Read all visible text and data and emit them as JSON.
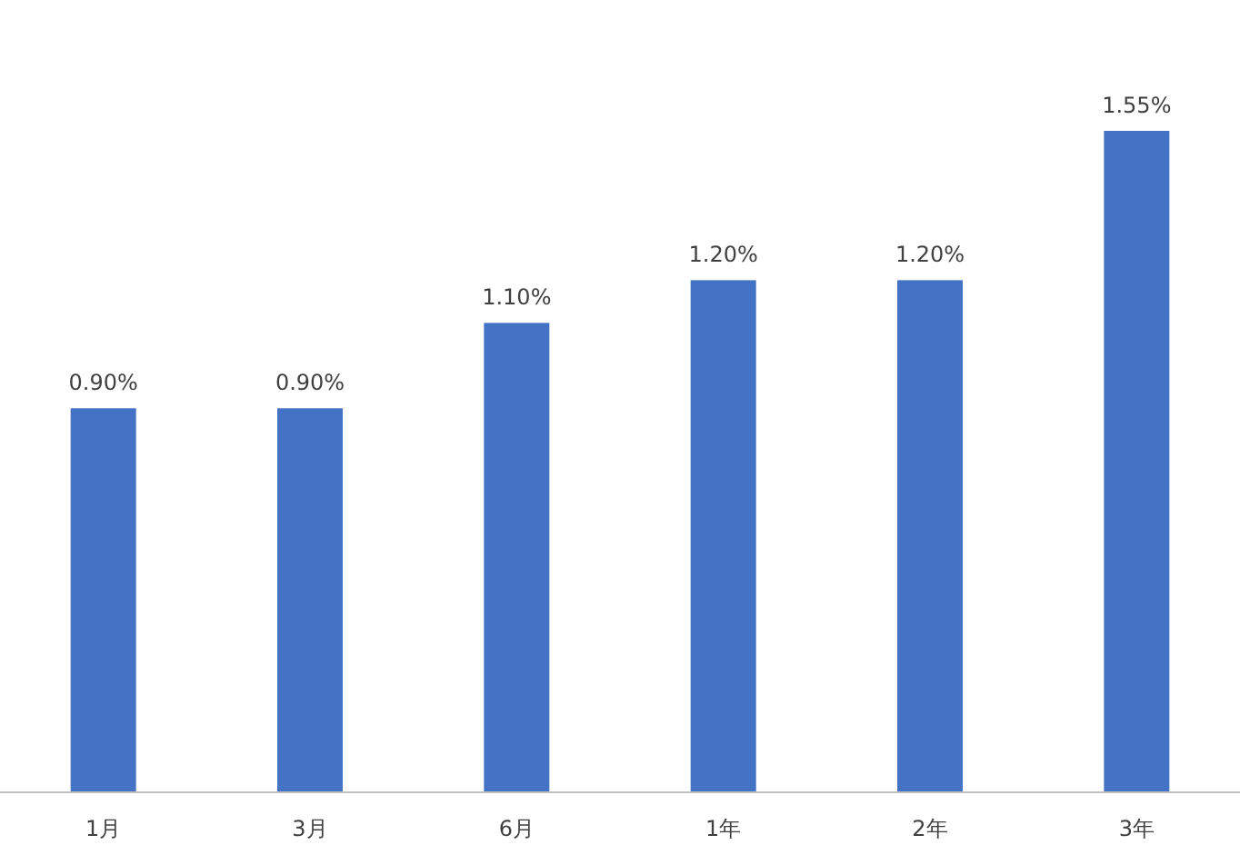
{
  "chart_data": {
    "type": "bar",
    "categories": [
      "1月",
      "3月",
      "6月",
      "1年",
      "2年",
      "3年"
    ],
    "values": [
      0.9,
      0.9,
      1.1,
      1.2,
      1.2,
      1.55
    ],
    "value_labels": [
      "0.90%",
      "0.90%",
      "1.10%",
      "1.20%",
      "1.20%",
      "1.55%"
    ],
    "color": "#4472c4"
  }
}
